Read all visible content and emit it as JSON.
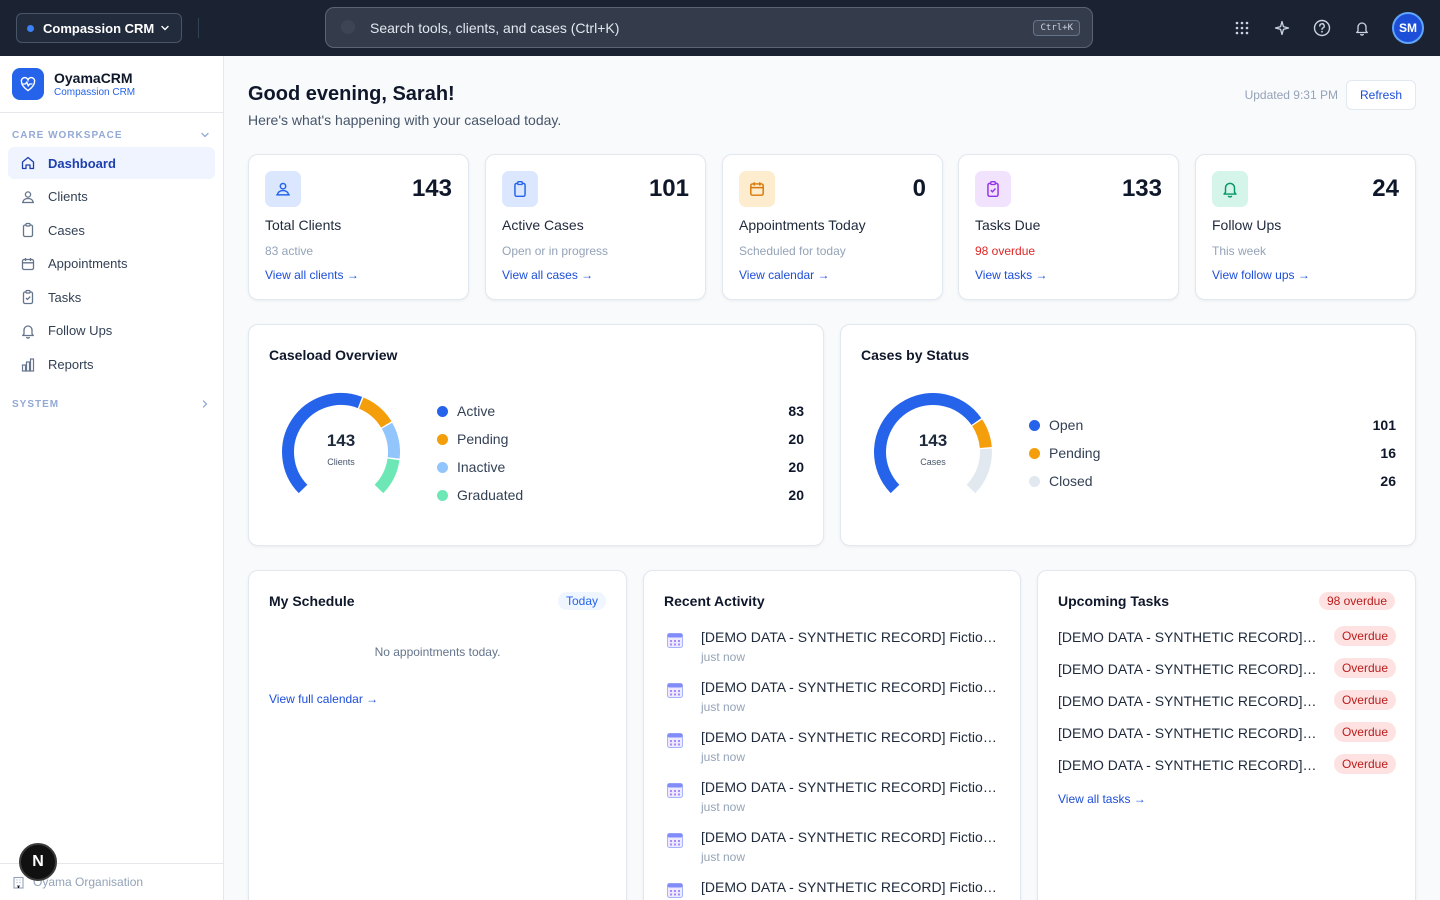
{
  "topbar": {
    "org_label": "Compassion CRM",
    "search_placeholder": "Search tools, clients, and cases (Ctrl+K)",
    "search_shortcut": "Ctrl+K",
    "avatar_initials": "SM",
    "icons": [
      "apps-grid-icon",
      "sparkle-icon",
      "help-icon",
      "bell-icon"
    ]
  },
  "sidebar": {
    "brand_name": "OyamaCRM",
    "brand_sub": "Compassion CRM",
    "section_workspace": "CARE WORKSPACE",
    "section_system": "SYSTEM",
    "items": [
      {
        "label": "Dashboard",
        "icon": "home-icon",
        "active": true
      },
      {
        "label": "Clients",
        "icon": "users-icon"
      },
      {
        "label": "Cases",
        "icon": "clipboard-icon"
      },
      {
        "label": "Appointments",
        "icon": "calendar-icon"
      },
      {
        "label": "Tasks",
        "icon": "clipboard-check-icon"
      },
      {
        "label": "Follow Ups",
        "icon": "bell-icon"
      },
      {
        "label": "Reports",
        "icon": "bar-chart-icon"
      }
    ],
    "footer": "Oyama Organisation",
    "dev_badge": "N"
  },
  "header": {
    "greeting": "Good evening, Sarah!",
    "subtitle": "Here's what's happening with your caseload today.",
    "updated": "Updated 9:31 PM",
    "refresh_label": "Refresh"
  },
  "stats": [
    {
      "value": "143",
      "title": "Total Clients",
      "sub": "83 active",
      "link": "View all clients →",
      "icon": "users-icon",
      "color": "#2563eb",
      "bg": "#dbe7fe"
    },
    {
      "value": "101",
      "title": "Active Cases",
      "sub": "Open or in progress",
      "link": "View all cases →",
      "icon": "clipboard-icon",
      "color": "#2563eb",
      "bg": "#dbe7fe"
    },
    {
      "value": "0",
      "title": "Appointments Today",
      "sub": "Scheduled for today",
      "link": "View calendar →",
      "icon": "calendar-icon",
      "color": "#d97706",
      "bg": "#fdeccd"
    },
    {
      "value": "133",
      "title": "Tasks Due",
      "sub": "98 overdue",
      "link": "View tasks →",
      "icon": "clipboard-check-icon",
      "color": "#9333ea",
      "bg": "#f1e2fd"
    },
    {
      "value": "24",
      "title": "Follow Ups",
      "sub": "This week",
      "link": "View follow ups →",
      "icon": "bell-icon",
      "color": "#059669",
      "bg": "#d6f5ea"
    }
  ],
  "caseload": {
    "title": "Caseload Overview",
    "center_value": "143",
    "center_label": "Clients",
    "items": [
      {
        "label": "Active",
        "value": "83",
        "color": "#2563eb"
      },
      {
        "label": "Pending",
        "value": "20",
        "color": "#f59e0b"
      },
      {
        "label": "Inactive",
        "value": "20",
        "color": "#93c5fd"
      },
      {
        "label": "Graduated",
        "value": "20",
        "color": "#6ee7b7"
      }
    ]
  },
  "cases_status": {
    "title": "Cases by Status",
    "center_value": "143",
    "center_label": "Cases",
    "items": [
      {
        "label": "Open",
        "value": "101",
        "color": "#2563eb"
      },
      {
        "label": "Pending",
        "value": "16",
        "color": "#f59e0b"
      },
      {
        "label": "Closed",
        "value": "26",
        "color": "#e2e8f0"
      }
    ]
  },
  "schedule": {
    "title": "My Schedule",
    "badge": "Today",
    "empty": "No appointments today.",
    "link": "View full calendar →"
  },
  "activity": {
    "title": "Recent Activity",
    "items": [
      {
        "text": "[DEMO DATA - SYNTHETIC RECORD] Fictional...",
        "when": "just now"
      },
      {
        "text": "[DEMO DATA - SYNTHETIC RECORD] Fictional...",
        "when": "just now"
      },
      {
        "text": "[DEMO DATA - SYNTHETIC RECORD] Fictional...",
        "when": "just now"
      },
      {
        "text": "[DEMO DATA - SYNTHETIC RECORD] Fictional...",
        "when": "just now"
      },
      {
        "text": "[DEMO DATA - SYNTHETIC RECORD] Fictional...",
        "when": "just now"
      },
      {
        "text": "[DEMO DATA - SYNTHETIC RECORD] Fictional...",
        "when": ""
      }
    ]
  },
  "tasks": {
    "title": "Upcoming Tasks",
    "badge": "98 overdue",
    "items": [
      {
        "text": "[DEMO DATA - SYNTHETIC RECORD] Fo...",
        "status": "Overdue"
      },
      {
        "text": "[DEMO DATA - SYNTHETIC RECORD] Fo...",
        "status": "Overdue"
      },
      {
        "text": "[DEMO DATA - SYNTHETIC RECORD] Fo...",
        "status": "Overdue"
      },
      {
        "text": "[DEMO DATA - SYNTHETIC RECORD] Fo...",
        "status": "Overdue"
      },
      {
        "text": "[DEMO DATA - SYNTHETIC RECORD] Fo...",
        "status": "Overdue"
      }
    ],
    "link": "View all tasks →"
  }
}
